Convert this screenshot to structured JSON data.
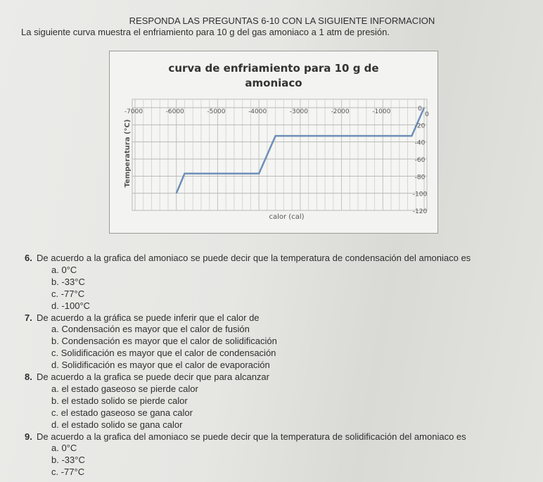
{
  "header": {
    "heading": "RESPONDA LAS PREGUNTAS 6-10 CON LA SIGUIENTE INFORMACION",
    "intro": "La siguiente curva muestra el enfriamiento para 10 g del gas amoniaco a 1 atm de presión."
  },
  "chart_data": {
    "type": "line",
    "title_line1": "curva de enfriamiento para 10 g de",
    "title_line2": "amoniaco",
    "xlabel": "calor (cal)",
    "ylabel": "Temperatura (°C)",
    "xlim": [
      -7000,
      0
    ],
    "ylim": [
      -120,
      0
    ],
    "x_axis_position": "top",
    "y_axis_position": "right",
    "grid": true,
    "x_ticks": [
      "-7000",
      "-6000",
      "-5000",
      "-4000",
      "-3000",
      "-2000",
      "-1000",
      "0"
    ],
    "y_ticks": [
      "0",
      "-20",
      "-40",
      "-60",
      "-80",
      "-100",
      "-120"
    ],
    "line_color": "#6d8fb8",
    "series": [
      {
        "x": [
          0,
          -300,
          -3600,
          -4000,
          -5800,
          -6000
        ],
        "y": [
          0,
          -33,
          -33,
          -77,
          -77,
          -100
        ]
      }
    ]
  },
  "questions": [
    {
      "number": "6.",
      "text": "De acuerdo a la grafica del amoniaco se puede decir que la temperatura de condensación del amoniaco es",
      "options": [
        "a. 0°C",
        "b. -33°C",
        "c. -77°C",
        "d. -100°C"
      ]
    },
    {
      "number": "7.",
      "text": "De acuerdo a la gráfica se puede inferir que el calor de",
      "options": [
        "a. Condensación es mayor que el calor de fusión",
        "b. Condensación es mayor que el calor de solidificación",
        "c. Solidificación es mayor que el calor de condensación",
        "d. Solidificación es mayor que el calor de evaporación"
      ]
    },
    {
      "number": "8.",
      "text": "De acuerdo a la grafica se puede decir que para alcanzar",
      "options": [
        "a. el estado gaseoso se pierde calor",
        "b. el estado solido se pierde calor",
        "c. el estado gaseoso se gana calor",
        "d. el estado solido se gana calor"
      ]
    },
    {
      "number": "9.",
      "text": "De acuerdo a la grafica del amoniaco se puede decir que la temperatura de solidificación del amoniaco es",
      "options": [
        "a. 0°C",
        "b. -33°C",
        "c. -77°C"
      ]
    }
  ]
}
